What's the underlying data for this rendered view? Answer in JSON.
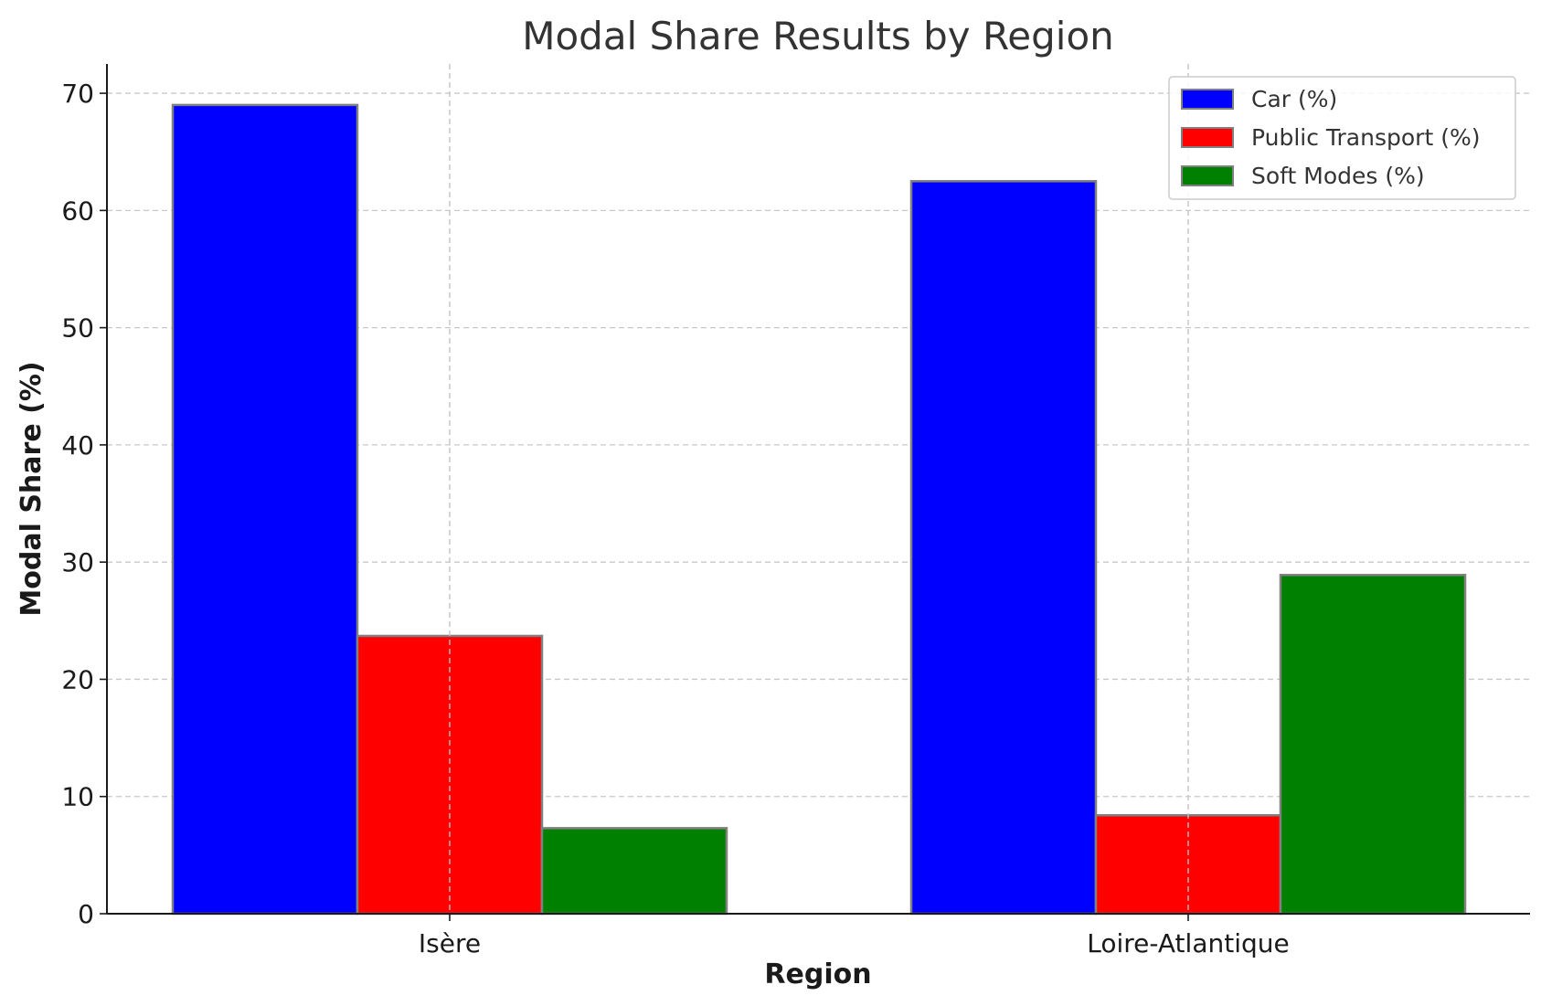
{
  "chart_data": {
    "type": "bar",
    "title": "Modal Share Results by Region",
    "xlabel": "Region",
    "ylabel": "Modal Share (%)",
    "categories": [
      "Isère",
      "Loire-Atlantique"
    ],
    "series": [
      {
        "name": "Car (%)",
        "values": [
          69.0,
          62.5
        ],
        "color": "#0000ff"
      },
      {
        "name": "Public Transport (%)",
        "values": [
          23.7,
          8.4
        ],
        "color": "#ff0000"
      },
      {
        "name": "Soft Modes (%)",
        "values": [
          7.3,
          28.9
        ],
        "color": "#008000"
      }
    ],
    "ylim": [
      0,
      72.5
    ],
    "yticks": [
      0,
      10,
      20,
      30,
      40,
      50,
      60,
      70
    ],
    "grid": true,
    "legend": "top-right",
    "bar_edge_color": "#808080"
  }
}
